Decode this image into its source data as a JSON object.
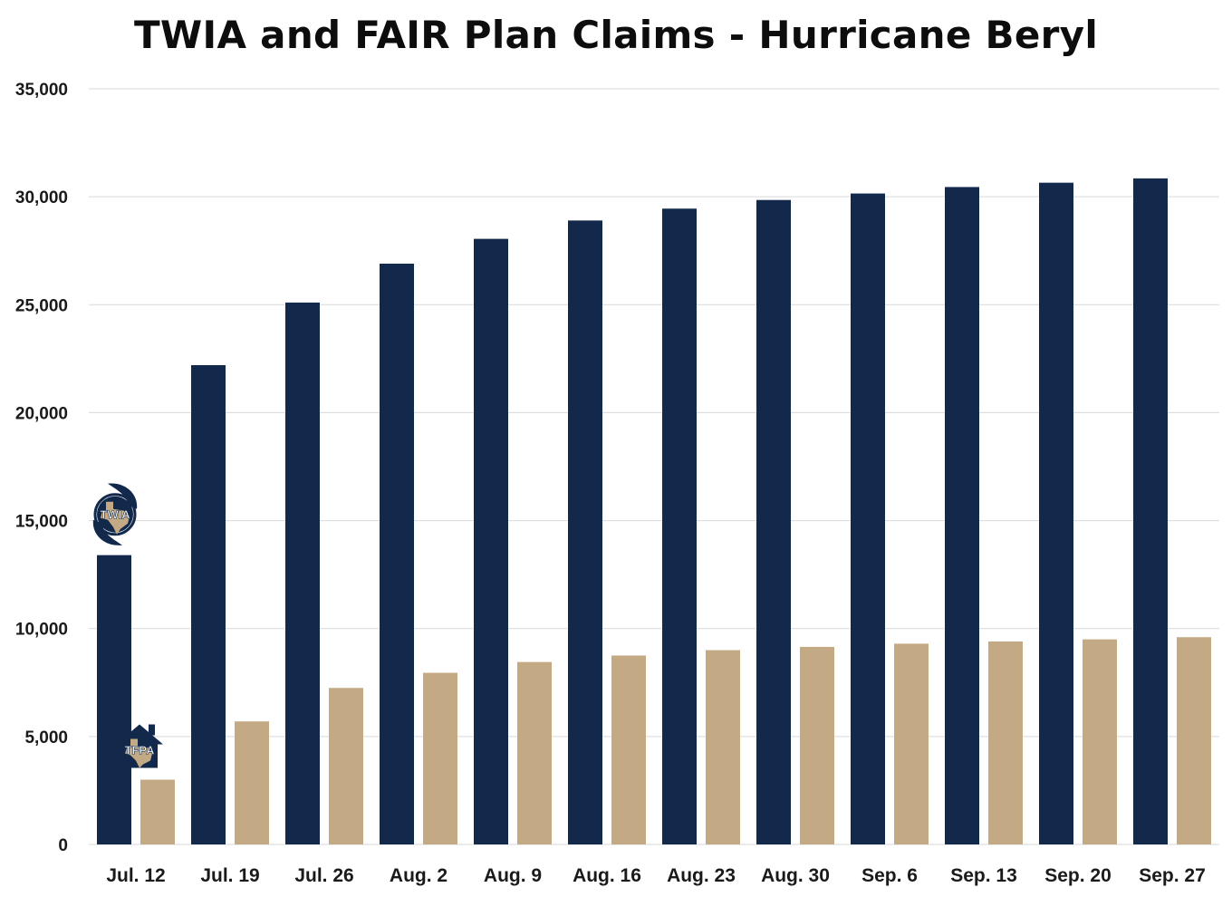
{
  "chart_data": {
    "type": "bar",
    "title": "TWIA and FAIR Plan Claims - Hurricane Beryl",
    "xlabel": "",
    "ylabel": "",
    "ylim": [
      0,
      35000
    ],
    "yticks": [
      "0",
      "5,000",
      "10,000",
      "15,000",
      "20,000",
      "25,000",
      "30,000",
      "35,000"
    ],
    "grid": true,
    "categories": [
      "Jul. 12",
      "Jul. 19",
      "Jul. 26",
      "Aug. 2",
      "Aug. 9",
      "Aug. 16",
      "Aug. 23",
      "Aug. 30",
      "Sep. 6",
      "Sep. 13",
      "Sep. 20",
      "Sep. 27"
    ],
    "series": [
      {
        "key": "twia",
        "color": "#13294b",
        "values": [
          13400,
          22200,
          25100,
          26900,
          28050,
          28900,
          29450,
          29850,
          30150,
          30450,
          30650,
          30850
        ]
      },
      {
        "key": "tfpa",
        "color": "#c4aa84",
        "values": [
          3000,
          5700,
          7250,
          7950,
          8450,
          8750,
          9000,
          9150,
          9300,
          9400,
          9500,
          9600
        ]
      }
    ],
    "logos": {
      "twia": {
        "text": "TWIA",
        "icon": "twia-hurricane-logo-icon"
      },
      "tfpa": {
        "text": "TFPA",
        "icon": "tfpa-house-logo-icon"
      }
    }
  }
}
